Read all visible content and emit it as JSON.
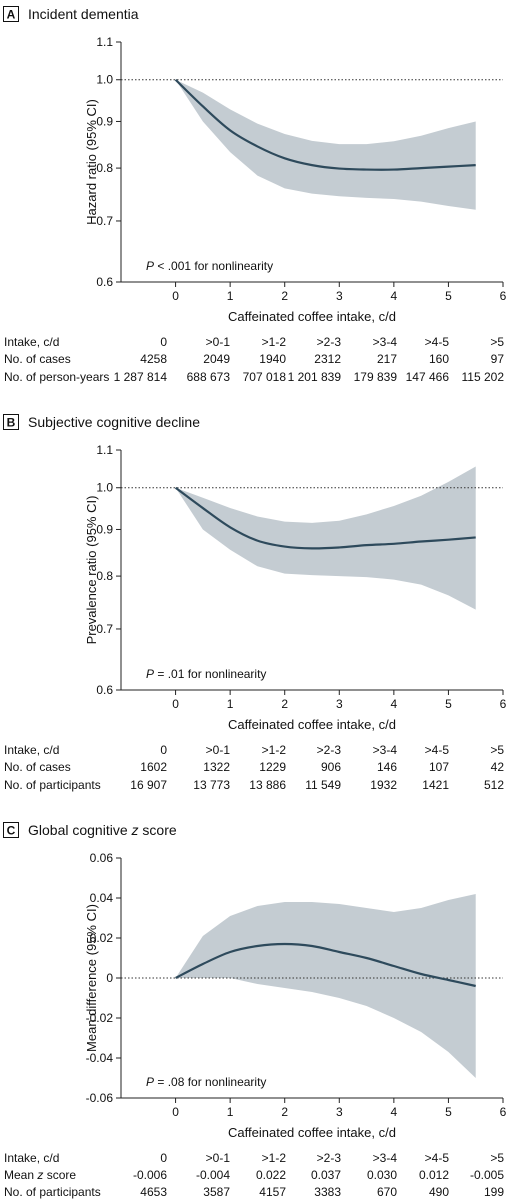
{
  "chart_data": [
    {
      "type": "line",
      "panel_label": "A",
      "title": "Incident dementia",
      "xlabel": "Caffeinated coffee intake, c/d",
      "ylabel": "Hazard ratio (95% CI)",
      "y_scale": "log",
      "xlim": [
        -1,
        6
      ],
      "ylim": [
        0.6,
        1.1
      ],
      "x_ticks": [
        0,
        1,
        2,
        3,
        4,
        5,
        6
      ],
      "y_ticks": [
        0.6,
        0.7,
        0.8,
        0.9,
        1.0,
        1.1
      ],
      "y_tick_labels": [
        "0.6",
        "0.7",
        "0.8",
        "0.9",
        "1.0",
        "1.1"
      ],
      "reference_line": 1.0,
      "note_italic": "P",
      "note_rest": " < .001 for nonlinearity",
      "series": [
        {
          "x": [
            0,
            0.5,
            1,
            1.5,
            2,
            2.5,
            3,
            3.5,
            4,
            4.5,
            5,
            5.5
          ],
          "values": [
            1.0,
            0.935,
            0.88,
            0.845,
            0.82,
            0.806,
            0.799,
            0.797,
            0.797,
            0.8,
            0.803,
            0.806
          ],
          "lower": [
            1.0,
            0.9,
            0.833,
            0.785,
            0.76,
            0.75,
            0.745,
            0.742,
            0.74,
            0.735,
            0.727,
            0.72
          ],
          "upper": [
            1.0,
            0.968,
            0.928,
            0.895,
            0.872,
            0.857,
            0.85,
            0.85,
            0.856,
            0.868,
            0.885,
            0.9
          ]
        }
      ],
      "table": {
        "rows": [
          {
            "label": "Intake, c/d",
            "values": [
              "0",
              ">0-1",
              ">1-2",
              ">2-3",
              ">3-4",
              ">4-5",
              ">5"
            ]
          },
          {
            "label": "No. of cases",
            "values": [
              "4258",
              "2049",
              "1940",
              "2312",
              "217",
              "160",
              "97"
            ]
          },
          {
            "label": "No. of person-years",
            "values": [
              "1 287 814",
              "688 673",
              "707 018",
              "1 201 839",
              "179 839",
              "147 466",
              "115 202"
            ]
          }
        ]
      }
    },
    {
      "type": "line",
      "panel_label": "B",
      "title": "Subjective cognitive decline",
      "xlabel": "Caffeinated coffee intake, c/d",
      "ylabel": "Prevalence ratio (95% CI)",
      "y_scale": "log",
      "xlim": [
        -1,
        6
      ],
      "ylim": [
        0.6,
        1.1
      ],
      "x_ticks": [
        0,
        1,
        2,
        3,
        4,
        5,
        6
      ],
      "y_ticks": [
        0.6,
        0.7,
        0.8,
        0.9,
        1.0,
        1.1
      ],
      "y_tick_labels": [
        "0.6",
        "0.7",
        "0.8",
        "0.9",
        "1.0",
        "1.1"
      ],
      "reference_line": 1.0,
      "note_italic": "P",
      "note_rest": " = .01 for nonlinearity",
      "series": [
        {
          "x": [
            0,
            0.5,
            1,
            1.5,
            2,
            2.5,
            3,
            3.5,
            4,
            4.5,
            5,
            5.5
          ],
          "values": [
            1.0,
            0.95,
            0.905,
            0.875,
            0.862,
            0.858,
            0.86,
            0.865,
            0.868,
            0.873,
            0.877,
            0.882
          ],
          "lower": [
            1.0,
            0.9,
            0.855,
            0.82,
            0.805,
            0.802,
            0.8,
            0.798,
            0.793,
            0.783,
            0.762,
            0.735
          ],
          "upper": [
            1.0,
            0.975,
            0.95,
            0.93,
            0.918,
            0.915,
            0.92,
            0.935,
            0.955,
            0.98,
            1.015,
            1.055
          ]
        }
      ],
      "table": {
        "rows": [
          {
            "label": "Intake, c/d",
            "values": [
              "0",
              ">0-1",
              ">1-2",
              ">2-3",
              ">3-4",
              ">4-5",
              ">5"
            ]
          },
          {
            "label": "No. of cases",
            "values": [
              "1602",
              "1322",
              "1229",
              "906",
              "146",
              "107",
              "42"
            ]
          },
          {
            "label": "No. of participants",
            "values": [
              "16 907",
              "13 773",
              "13 886",
              "11 549",
              "1932",
              "1421",
              "512"
            ]
          }
        ]
      }
    },
    {
      "type": "line",
      "panel_label": "C",
      "title_prefix": "Global cognitive ",
      "title_italic": "z",
      "title_suffix": " score",
      "xlabel": "Caffeinated coffee intake, c/d",
      "ylabel": "Mean difference (95% CI)",
      "y_scale": "linear",
      "xlim": [
        -1,
        6
      ],
      "ylim": [
        -0.06,
        0.06
      ],
      "x_ticks": [
        0,
        1,
        2,
        3,
        4,
        5,
        6
      ],
      "y_ticks": [
        -0.06,
        -0.04,
        -0.02,
        0,
        0.02,
        0.04,
        0.06
      ],
      "y_tick_labels": [
        "-0.06",
        "-0.04",
        "-0.02",
        "0",
        "0.02",
        "0.04",
        "0.06"
      ],
      "reference_line": 0,
      "note_italic": "P",
      "note_rest": " = .08 for nonlinearity",
      "series": [
        {
          "x": [
            0,
            0.5,
            1,
            1.5,
            2,
            2.5,
            3,
            3.5,
            4,
            4.5,
            5,
            5.5
          ],
          "values": [
            0,
            0.007,
            0.013,
            0.016,
            0.017,
            0.016,
            0.013,
            0.01,
            0.006,
            0.002,
            -0.001,
            -0.004
          ],
          "lower": [
            0,
            0,
            0,
            -0.003,
            -0.005,
            -0.007,
            -0.01,
            -0.014,
            -0.02,
            -0.027,
            -0.037,
            -0.05
          ],
          "upper": [
            0,
            0.021,
            0.031,
            0.036,
            0.038,
            0.038,
            0.037,
            0.035,
            0.033,
            0.035,
            0.039,
            0.042
          ]
        }
      ],
      "table": {
        "rows": [
          {
            "label": "Intake, c/d",
            "values": [
              "0",
              ">0-1",
              ">1-2",
              ">2-3",
              ">3-4",
              ">4-5",
              ">5"
            ]
          },
          {
            "label_prefix": "Mean ",
            "label_italic": "z",
            "label_suffix": " score",
            "values": [
              "-0.006",
              "-0.004",
              "0.022",
              "0.037",
              "0.030",
              "0.012",
              "-0.005"
            ]
          },
          {
            "label": "No. of participants",
            "values": [
              "4653",
              "3587",
              "4157",
              "3383",
              "670",
              "490",
              "199"
            ]
          }
        ]
      }
    }
  ],
  "colors": {
    "line": "#2e4a5c",
    "band": "#c4ccd2",
    "axis": "#222222",
    "reference": "#333333"
  }
}
